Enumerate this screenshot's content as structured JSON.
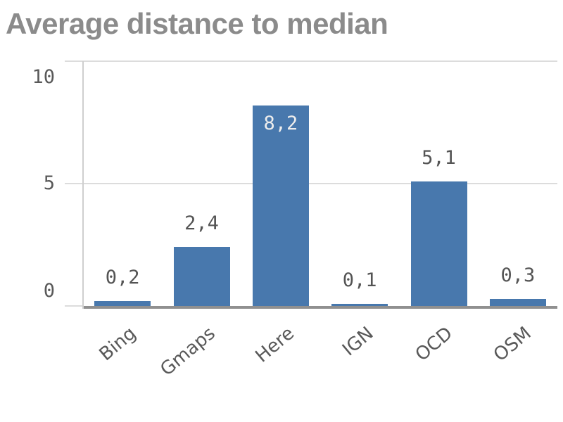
{
  "title": "Average distance to median",
  "chart_data": {
    "type": "bar",
    "title": "Average distance to median",
    "categories": [
      "Bing",
      "Gmaps",
      "Here",
      "IGN",
      "OCD",
      "OSM"
    ],
    "values": [
      0.2,
      2.4,
      8.2,
      0.1,
      5.1,
      0.3
    ],
    "value_labels": [
      "0,2",
      "2,4",
      "8,2",
      "0,1",
      "5,1",
      "0,3"
    ],
    "xlabel": "",
    "ylabel": "",
    "ylim": [
      0,
      10
    ],
    "yticks": [
      0,
      5,
      10
    ],
    "ytick_labels": [
      "0",
      "5",
      "10"
    ],
    "grid": true,
    "legend": false,
    "decimal_separator": ",",
    "colors": {
      "bar": "#4878ad",
      "value_label": "#545454",
      "value_label_inside": "#ededed",
      "gridline": "#dcdcdc",
      "axis_line": "#cfcfcf",
      "baseline": "#909090",
      "tick_text": "#595959",
      "category_text": "#595959",
      "title_text": "#8b8b8b"
    }
  }
}
